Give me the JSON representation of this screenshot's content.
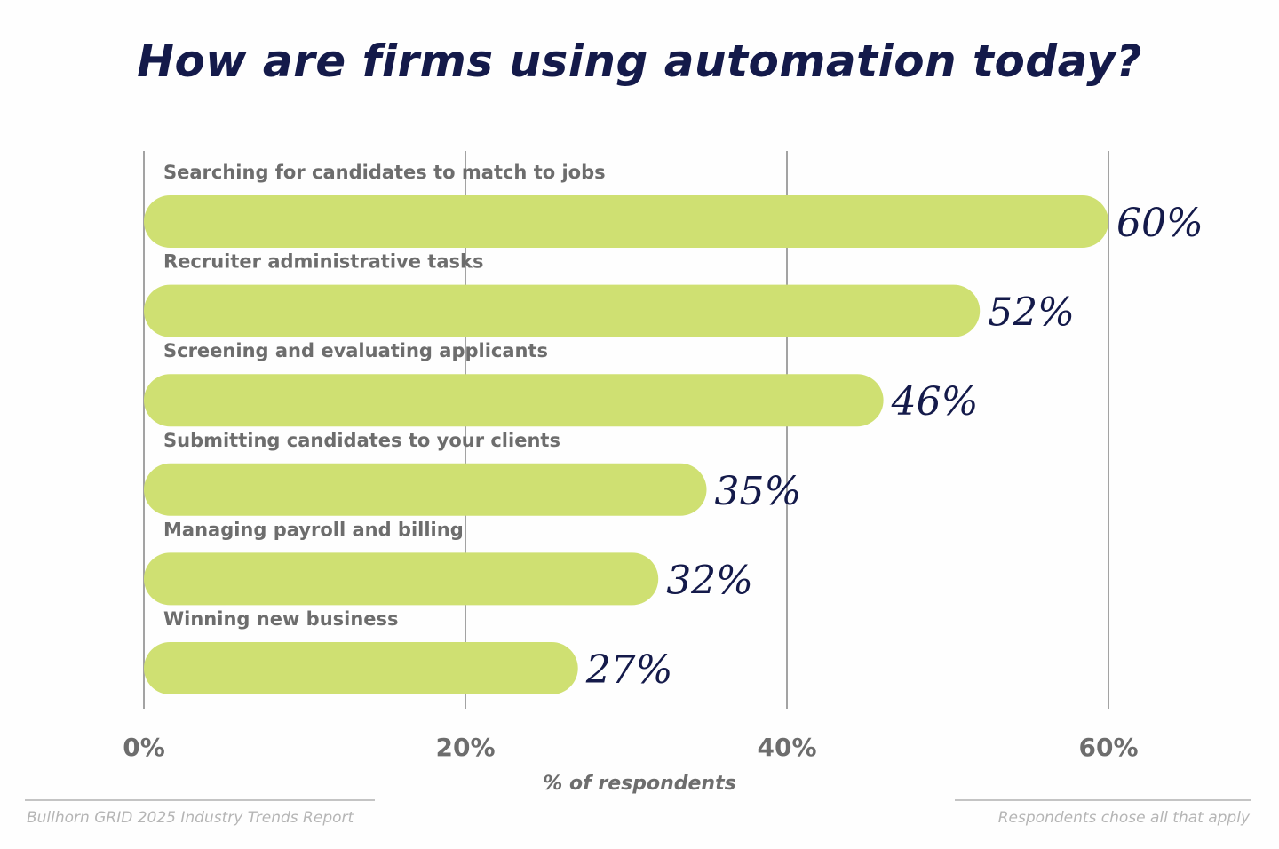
{
  "chart_data": {
    "type": "bar",
    "orientation": "horizontal",
    "title": "How are firms using automation today?",
    "categories": [
      "Searching for candidates to match to jobs",
      "Recruiter administrative tasks",
      "Screening and evaluating applicants",
      "Submitting candidates to your clients",
      "Managing payroll and billing",
      "Winning new business"
    ],
    "values": [
      60,
      52,
      46,
      35,
      32,
      27
    ],
    "value_labels": [
      "60%",
      "52%",
      "46%",
      "35%",
      "32%",
      "27%"
    ],
    "xlabel": "% of respondents",
    "ylabel": "",
    "xlim": [
      0,
      60
    ],
    "x_ticks": [
      0,
      20,
      40,
      60
    ],
    "x_tick_labels": [
      "0%",
      "20%",
      "40%",
      "60%"
    ],
    "grid": true,
    "legend": "none"
  },
  "footer": {
    "source": "Bullhorn GRID 2025 Industry Trends Report",
    "note": "Respondents chose all that apply"
  },
  "colors": {
    "bar": "#cfe072",
    "title": "#141a4a",
    "value_label": "#141a4a",
    "category_label": "#6d6d6d",
    "gridline": "#a3a3a3",
    "footer_text": "#b5b5b5"
  }
}
